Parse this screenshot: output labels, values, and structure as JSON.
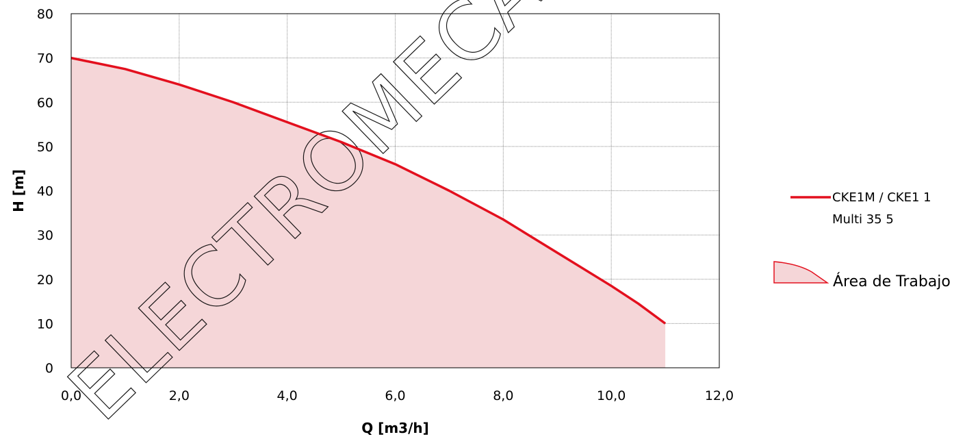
{
  "chart_data": {
    "type": "line",
    "xlabel": "Q [m3/h]",
    "ylabel": "H [m]",
    "xlim": [
      0,
      12
    ],
    "ylim": [
      0,
      80
    ],
    "x_ticks": [
      0,
      2,
      4,
      6,
      8,
      10,
      12
    ],
    "x_tick_labels": [
      "0,0",
      "2,0",
      "4,0",
      "6,0",
      "8,0",
      "10,0",
      "12,0"
    ],
    "y_ticks": [
      0,
      10,
      20,
      30,
      40,
      50,
      60,
      70,
      80
    ],
    "y_tick_labels": [
      "0",
      "10",
      "20",
      "30",
      "40",
      "50",
      "60",
      "70",
      "80"
    ],
    "grid": true,
    "legend_position": "right",
    "series": [
      {
        "name": "CKE1M / CKE1 1 Multi 35 5",
        "color": "#e3101e",
        "x": [
          0,
          1,
          2,
          3,
          4,
          5,
          6,
          7,
          8,
          9,
          10,
          10.5,
          11
        ],
        "y": [
          70,
          67.5,
          64,
          60,
          55.5,
          51,
          46,
          40,
          33.5,
          26,
          18.5,
          14.5,
          10
        ]
      }
    ],
    "area": {
      "name": "Área de Trabajo",
      "color": "#f5d6d8",
      "x": [
        0,
        1,
        2,
        3,
        4,
        5,
        6,
        7,
        8,
        9,
        10,
        10.5,
        11
      ],
      "y": [
        70,
        67.5,
        64,
        60,
        55.5,
        51,
        46,
        40,
        33.5,
        26,
        18.5,
        14.5,
        10
      ],
      "x_end": 11
    },
    "legend": {
      "line_label_1": "CKE1M / CKE1 1",
      "line_label_2": "Multi 35 5",
      "area_label": "Área de Trabajo"
    }
  }
}
